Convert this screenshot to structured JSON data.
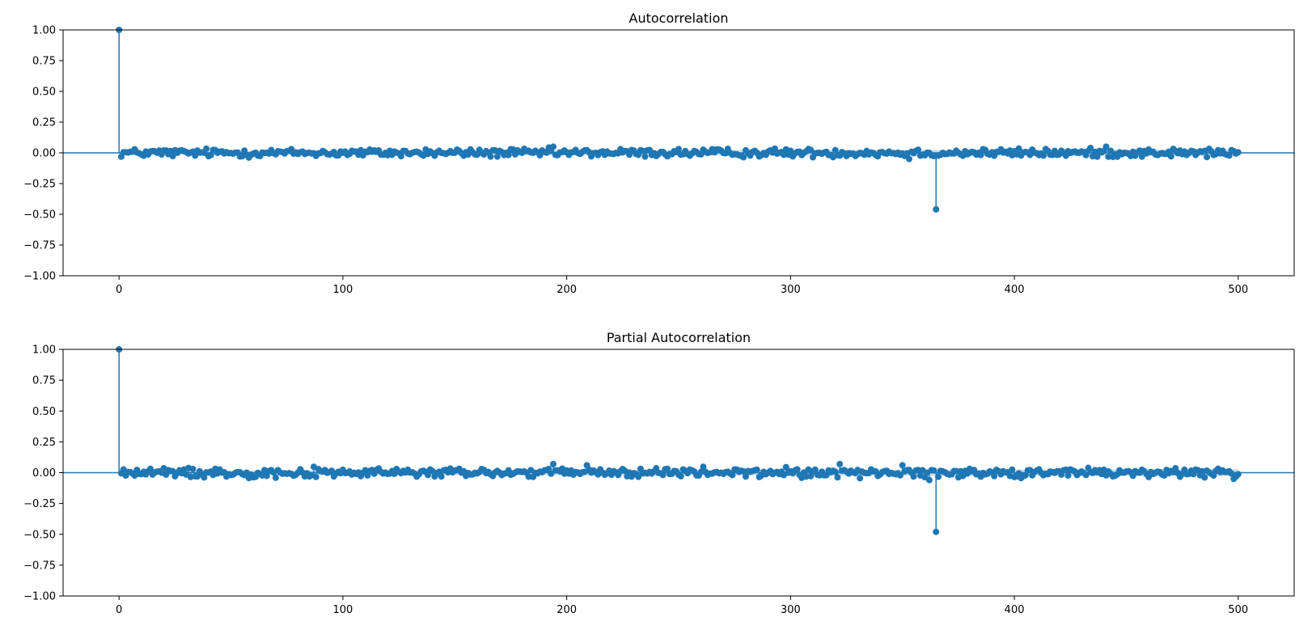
{
  "colors": {
    "series": "#1f77b4",
    "axes": "#000000",
    "background": "#ffffff"
  },
  "chart_data": [
    {
      "type": "scatter",
      "subtype": "stem",
      "title": "Autocorrelation",
      "xlim": [
        -25,
        525
      ],
      "ylim": [
        -1.0,
        1.0
      ],
      "xticks": [
        "0",
        "100",
        "200",
        "300",
        "400",
        "500"
      ],
      "xtick_values": [
        0,
        100,
        200,
        300,
        400,
        500
      ],
      "yticks": [
        "1.00",
        "0.75",
        "0.50",
        "0.25",
        "0.00",
        "−0.25",
        "−0.50",
        "−0.75",
        "−1.00"
      ],
      "ytick_values": [
        1.0,
        0.75,
        0.5,
        0.25,
        0.0,
        -0.25,
        -0.5,
        -0.75,
        -1.0
      ],
      "lags": [
        0,
        500
      ],
      "confidence_band": 0.02,
      "noise_amplitude": 0.045,
      "notable_points": [
        {
          "x": 0,
          "y": 1.0
        },
        {
          "x": 365,
          "y": -0.46
        },
        {
          "x": 194,
          "y": 0.05
        },
        {
          "x": 441,
          "y": 0.05
        },
        {
          "x": 353,
          "y": -0.05
        }
      ]
    },
    {
      "type": "scatter",
      "subtype": "stem",
      "title": "Partial Autocorrelation",
      "xlim": [
        -25,
        525
      ],
      "ylim": [
        -1.0,
        1.0
      ],
      "xticks": [
        "0",
        "100",
        "200",
        "300",
        "400",
        "500"
      ],
      "xtick_values": [
        0,
        100,
        200,
        300,
        400,
        500
      ],
      "yticks": [
        "1.00",
        "0.75",
        "0.50",
        "0.25",
        "0.00",
        "−0.25",
        "−0.50",
        "−0.75",
        "−1.00"
      ],
      "ytick_values": [
        1.0,
        0.75,
        0.5,
        0.25,
        0.0,
        -0.25,
        -0.5,
        -0.75,
        -1.0
      ],
      "lags": [
        0,
        500
      ],
      "confidence_band": 0.02,
      "noise_amplitude": 0.05,
      "notable_points": [
        {
          "x": 0,
          "y": 1.0
        },
        {
          "x": 365,
          "y": -0.48
        },
        {
          "x": 194,
          "y": 0.07
        },
        {
          "x": 209,
          "y": 0.06
        },
        {
          "x": 322,
          "y": 0.07
        },
        {
          "x": 350,
          "y": 0.06
        },
        {
          "x": 362,
          "y": -0.06
        },
        {
          "x": 498,
          "y": -0.05
        }
      ]
    }
  ]
}
